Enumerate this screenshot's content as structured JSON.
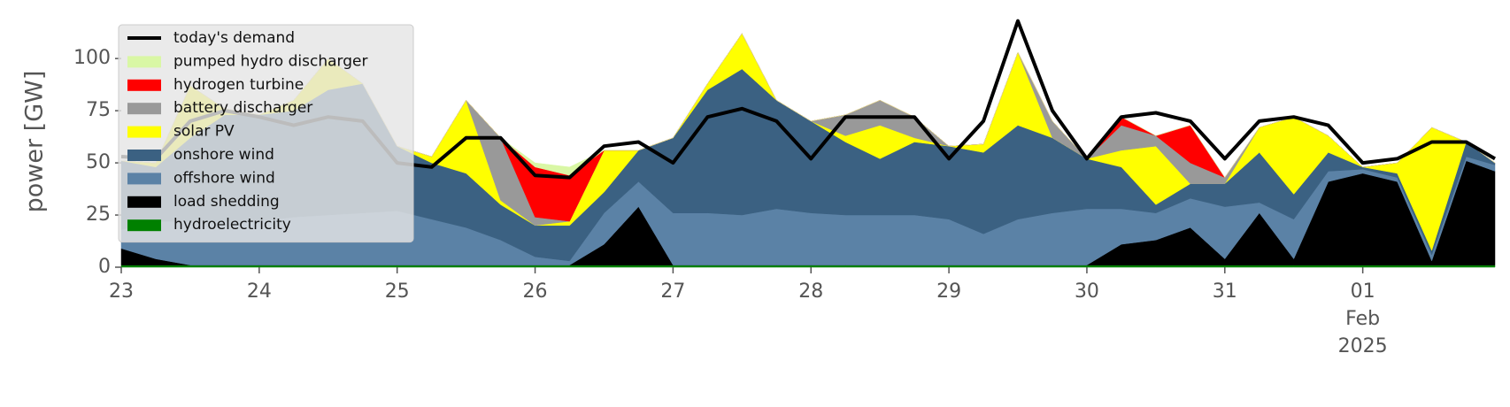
{
  "chart_data": {
    "type": "area",
    "ylabel": "power [GW]",
    "x": [
      "2025-01-23T00:00",
      "2025-01-23T06:00",
      "2025-01-23T12:00",
      "2025-01-23T18:00",
      "2025-01-24T00:00",
      "2025-01-24T06:00",
      "2025-01-24T12:00",
      "2025-01-24T18:00",
      "2025-01-25T00:00",
      "2025-01-25T06:00",
      "2025-01-25T12:00",
      "2025-01-25T18:00",
      "2025-01-26T00:00",
      "2025-01-26T06:00",
      "2025-01-26T12:00",
      "2025-01-26T18:00",
      "2025-01-27T00:00",
      "2025-01-27T06:00",
      "2025-01-27T12:00",
      "2025-01-27T18:00",
      "2025-01-28T00:00",
      "2025-01-28T06:00",
      "2025-01-28T12:00",
      "2025-01-28T18:00",
      "2025-01-29T00:00",
      "2025-01-29T06:00",
      "2025-01-29T12:00",
      "2025-01-29T18:00",
      "2025-01-30T00:00",
      "2025-01-30T06:00",
      "2025-01-30T12:00",
      "2025-01-30T18:00",
      "2025-01-31T00:00",
      "2025-01-31T06:00",
      "2025-01-31T12:00",
      "2025-01-31T18:00",
      "2025-02-01T00:00",
      "2025-02-01T06:00",
      "2025-02-01T12:00",
      "2025-02-01T18:00",
      "2025-02-01T23:00"
    ],
    "series": [
      {
        "name": "today's demand",
        "type": "line",
        "color": "#000000",
        "values": [
          53,
          52,
          70,
          75,
          72,
          68,
          72,
          70,
          50,
          48,
          62,
          62,
          44,
          43,
          58,
          60,
          50,
          72,
          76,
          70,
          52,
          72,
          72,
          72,
          52,
          70,
          118,
          75,
          52,
          72,
          74,
          70,
          52,
          70,
          72,
          68,
          50,
          52,
          60,
          60,
          52
        ]
      },
      {
        "name": "pumped hydro discharger",
        "color": "#d9f7a5",
        "values": [
          0,
          0,
          0,
          0,
          0,
          0,
          0,
          0,
          0,
          0,
          0,
          0,
          2,
          4,
          0,
          0,
          0,
          0,
          0,
          0,
          0,
          0,
          0,
          0,
          0,
          0,
          0,
          0,
          0,
          0,
          0,
          0,
          0,
          0,
          0,
          0,
          0,
          0,
          0,
          0,
          0
        ]
      },
      {
        "name": "hydrogen turbine",
        "color": "#ff0000",
        "values": [
          0,
          0,
          0,
          0,
          0,
          0,
          0,
          0,
          0,
          0,
          0,
          0,
          24,
          22,
          0,
          0,
          0,
          0,
          0,
          0,
          0,
          0,
          0,
          0,
          0,
          0,
          0,
          0,
          0,
          4,
          0,
          18,
          0,
          0,
          0,
          0,
          0,
          0,
          0,
          0,
          0
        ]
      },
      {
        "name": "battery discharger",
        "color": "#999999",
        "values": [
          0,
          0,
          0,
          0,
          0,
          0,
          0,
          0,
          0,
          0,
          0,
          30,
          4,
          0,
          0,
          0,
          0,
          0,
          0,
          0,
          0,
          10,
          12,
          10,
          0,
          0,
          0,
          8,
          0,
          12,
          5,
          10,
          3,
          0,
          0,
          0,
          0,
          0,
          0,
          0,
          0
        ]
      },
      {
        "name": "solar PV",
        "color": "#ffff00",
        "values": [
          0,
          2,
          25,
          3,
          0,
          5,
          15,
          0,
          0,
          3,
          35,
          2,
          0,
          2,
          20,
          0,
          0,
          3,
          17,
          0,
          0,
          3,
          16,
          2,
          0,
          4,
          35,
          0,
          0,
          8,
          28,
          0,
          0,
          12,
          37,
          8,
          0,
          5,
          59,
          0,
          0
        ]
      },
      {
        "name": "onshore wind",
        "color": "#3b6182",
        "values": [
          33,
          26,
          40,
          51,
          51,
          51,
          60,
          62,
          31,
          27,
          26,
          17,
          15,
          17,
          10,
          15,
          36,
          59,
          70,
          52,
          44,
          35,
          27,
          35,
          35,
          39,
          45,
          36,
          24,
          20,
          4,
          7,
          11,
          24,
          12,
          9,
          1,
          2,
          2,
          7,
          1
        ]
      },
      {
        "name": "offshore wind",
        "color": "#5b82a6",
        "values": [
          9,
          18,
          21,
          21,
          21,
          23,
          24,
          25,
          26,
          22,
          18,
          12,
          4,
          2,
          15,
          12,
          25,
          25,
          24,
          27,
          25,
          24,
          24,
          24,
          22,
          15,
          22,
          25,
          27,
          17,
          13,
          14,
          25,
          5,
          19,
          5,
          2,
          2,
          3,
          2,
          3
        ]
      },
      {
        "name": "load shedding",
        "color": "#000000",
        "values": [
          8,
          3,
          0,
          0,
          0,
          0,
          0,
          0,
          0,
          0,
          0,
          0,
          0,
          0,
          10,
          28,
          0,
          0,
          0,
          0,
          0,
          0,
          0,
          0,
          0,
          0,
          0,
          0,
          0,
          10,
          12,
          18,
          3,
          25,
          3,
          40,
          44,
          40,
          2,
          50,
          45
        ]
      },
      {
        "name": "hydroelectricity",
        "color": "#008000",
        "values": [
          1,
          1,
          1,
          1,
          1,
          1,
          1,
          1,
          1,
          1,
          1,
          1,
          1,
          1,
          1,
          1,
          1,
          1,
          1,
          1,
          1,
          1,
          1,
          1,
          1,
          1,
          1,
          1,
          1,
          1,
          1,
          1,
          1,
          1,
          1,
          1,
          1,
          1,
          1,
          1,
          1
        ]
      }
    ],
    "xlim": [
      "2025-01-23T00:00",
      "2025-02-01T23:00"
    ],
    "xticks": [
      {
        "value": "2025-01-23T00:00",
        "label": "23"
      },
      {
        "value": "2025-01-24T00:00",
        "label": "24"
      },
      {
        "value": "2025-01-25T00:00",
        "label": "25"
      },
      {
        "value": "2025-01-26T00:00",
        "label": "26"
      },
      {
        "value": "2025-01-27T00:00",
        "label": "27"
      },
      {
        "value": "2025-01-28T00:00",
        "label": "28"
      },
      {
        "value": "2025-01-29T00:00",
        "label": "29"
      },
      {
        "value": "2025-01-30T00:00",
        "label": "30"
      },
      {
        "value": "2025-01-31T00:00",
        "label": "31"
      },
      {
        "value": "2025-02-01T00:00",
        "label": "01\nFeb\n2025"
      }
    ],
    "ylim": [
      0,
      120
    ],
    "yticks": [
      0,
      25,
      50,
      75,
      100
    ],
    "legend": "upper left",
    "grid": false
  }
}
